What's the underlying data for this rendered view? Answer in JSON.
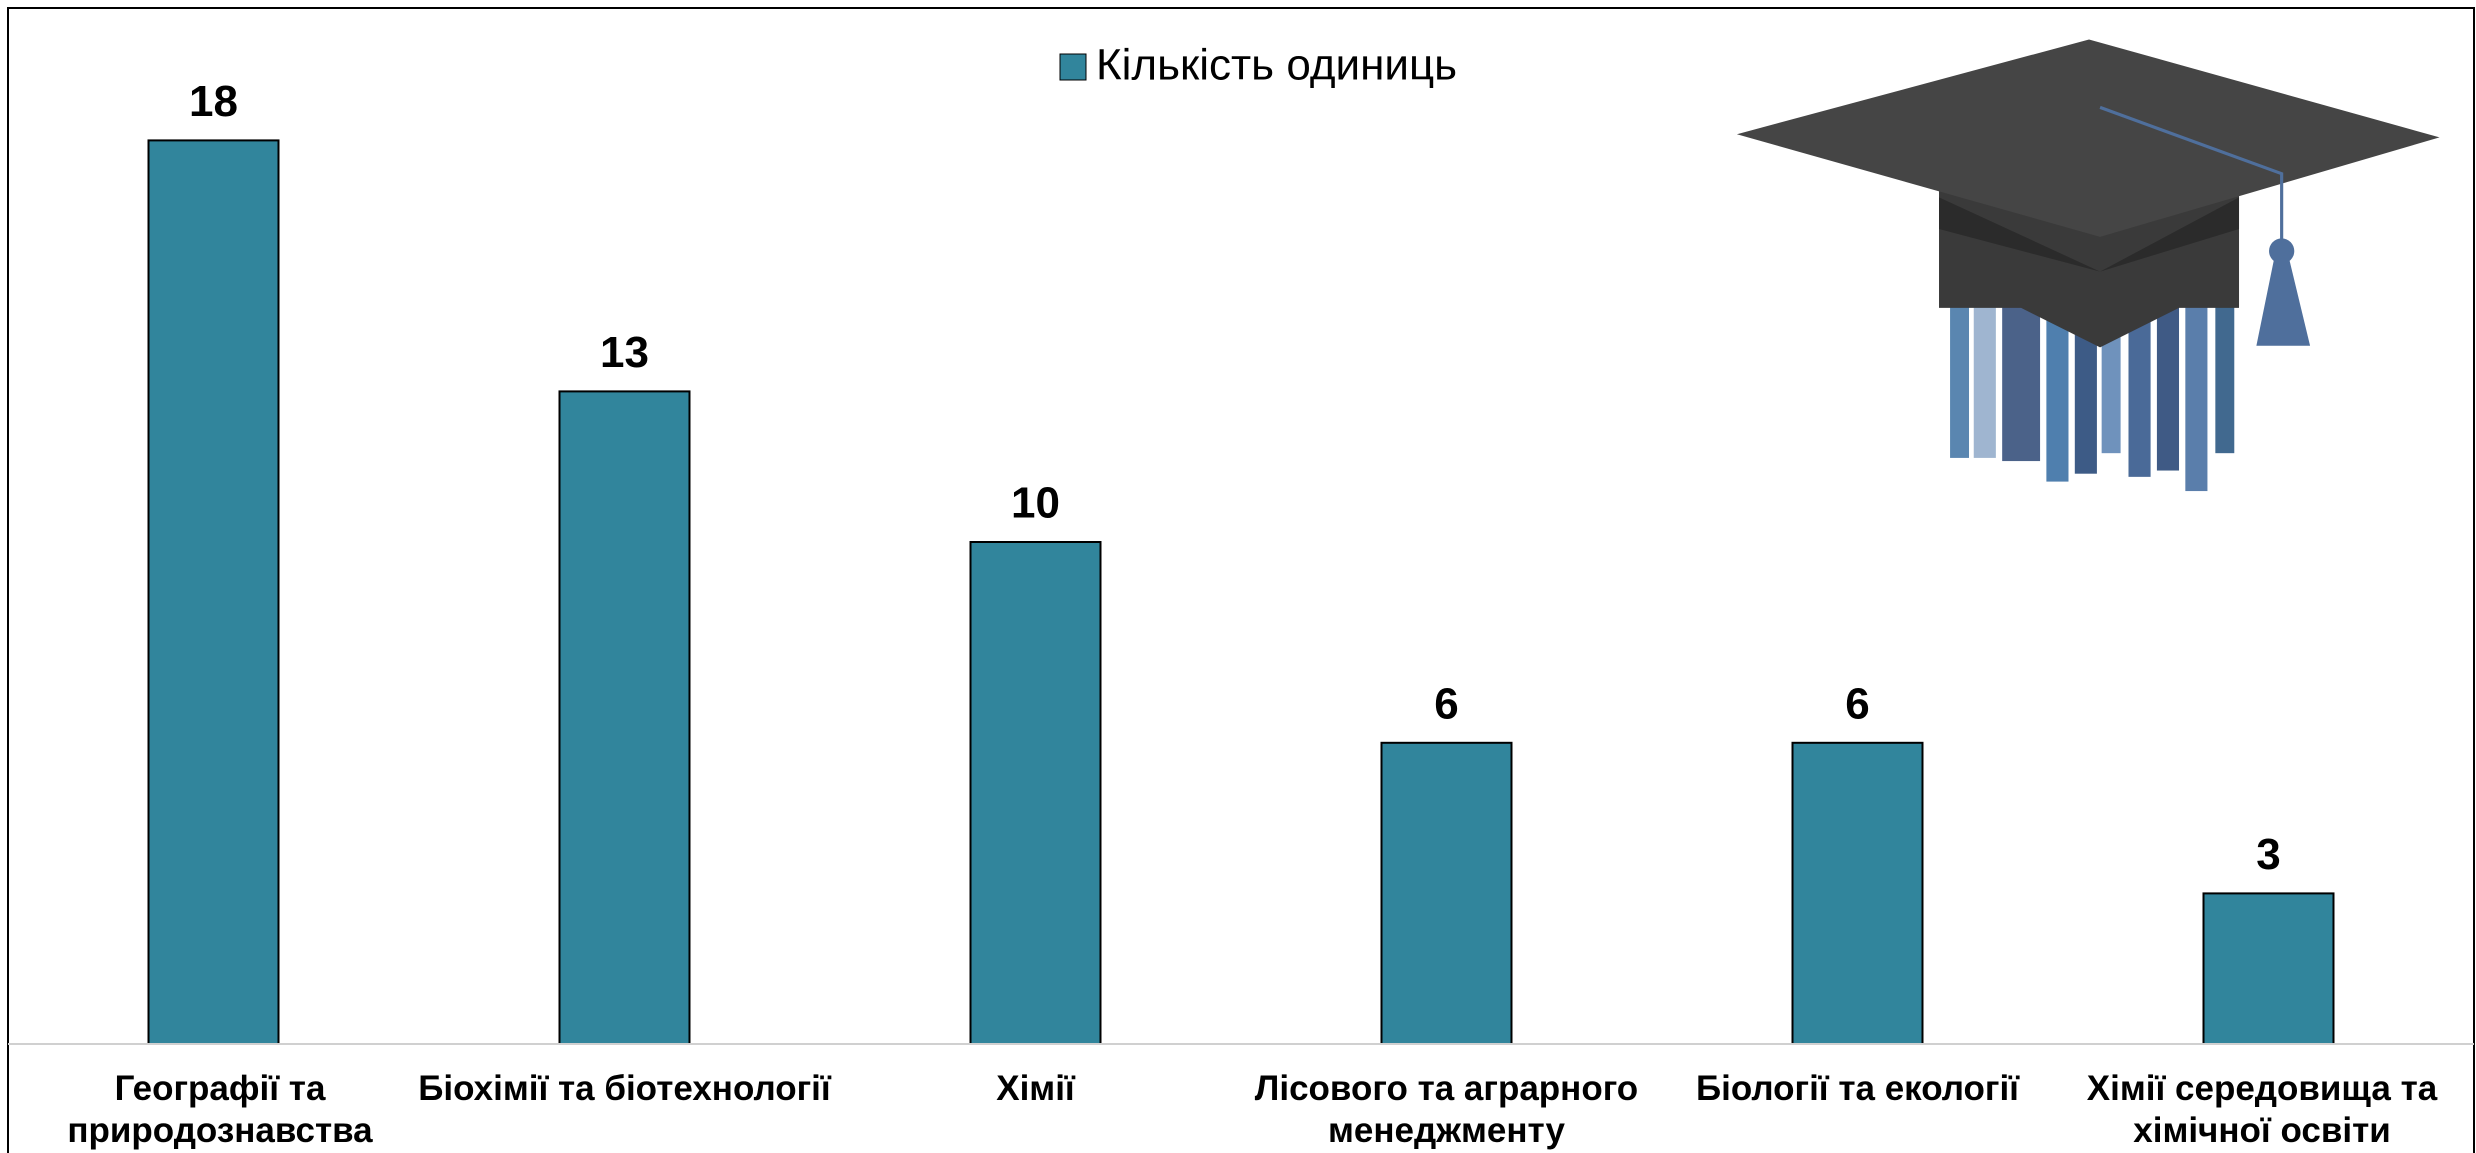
{
  "chart_data": {
    "type": "bar",
    "legend": "Кількість одиниць",
    "categories": [
      "Географії та природознавства",
      "Біохімії та біотехнології",
      "Хімії",
      "Лісового та аграрного менеджменту",
      "Біології та екології",
      "Хімії середовища та хімічної освіти"
    ],
    "values": [
      18,
      13,
      10,
      6,
      6,
      3
    ],
    "color": "#31859c",
    "ylim": [
      0,
      20
    ],
    "legend_position": "top"
  }
}
